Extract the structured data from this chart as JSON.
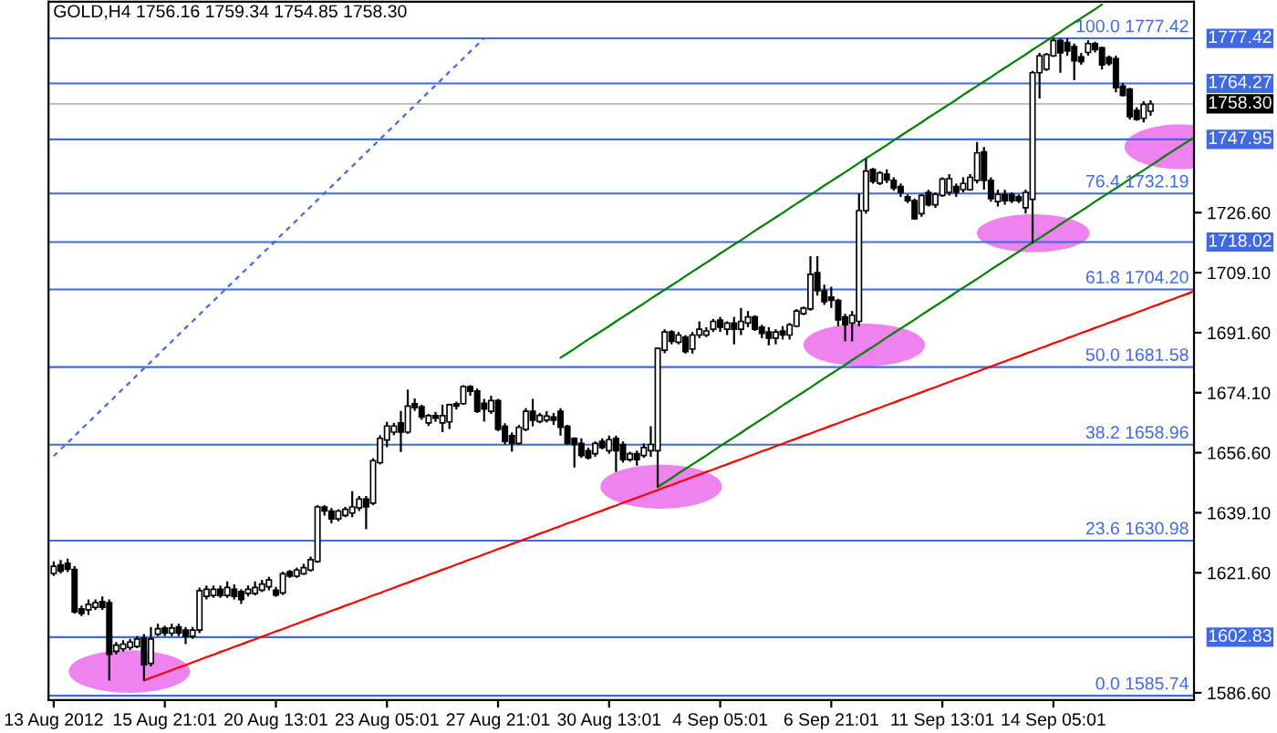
{
  "chart_data": {
    "type": "candlestick",
    "title": "GOLD,H4 1756.16 1759.34 1754.85 1758.30",
    "categories": [
      "13 Aug 2012",
      null,
      null,
      null,
      null,
      null,
      null,
      null,
      null,
      null,
      null,
      null,
      null,
      null,
      null,
      null,
      "15 Aug 21:01",
      null,
      null,
      null,
      null,
      null,
      null,
      null,
      null,
      null,
      null,
      null,
      null,
      null,
      null,
      null,
      "20 Aug 13:01",
      null,
      null,
      null,
      null,
      null,
      null,
      null,
      null,
      null,
      null,
      null,
      null,
      null,
      null,
      null,
      "23 Aug 05:01",
      null,
      null,
      null,
      null,
      null,
      null,
      null,
      null,
      null,
      null,
      null,
      null,
      null,
      null,
      null,
      "27 Aug 21:01",
      null,
      null,
      null,
      null,
      null,
      null,
      null,
      null,
      null,
      null,
      null,
      null,
      null,
      null,
      null,
      "30 Aug 13:01",
      null,
      null,
      null,
      null,
      null,
      null,
      null,
      null,
      null,
      null,
      null,
      null,
      null,
      null,
      null,
      "4 Sep 05:01",
      null,
      null,
      null,
      null,
      null,
      null,
      null,
      null,
      null,
      null,
      null,
      null,
      null,
      null,
      null,
      "6 Sep 21:01",
      null,
      null,
      null,
      null,
      null,
      null,
      null,
      null,
      null,
      null,
      null,
      null,
      null,
      null,
      null,
      "11 Sep 13:01",
      null,
      null,
      null,
      null,
      null,
      null,
      null,
      null,
      null,
      null,
      null,
      null,
      null,
      null,
      null,
      "14 Sep 05:01",
      null,
      null,
      null,
      null,
      null,
      null,
      null,
      null,
      null,
      null,
      null,
      null,
      null,
      null,
      null,
      null,
      null,
      null,
      null,
      null
    ],
    "ohlc": [
      [
        1621.4,
        1624.9,
        1620.7,
        1623.5
      ],
      [
        1623.9,
        1625.3,
        1621.4,
        1622.1
      ],
      [
        1624.4,
        1625.7,
        1621.8,
        1622.6
      ],
      [
        1622.6,
        1623.5,
        1609.7,
        1610.2
      ],
      [
        1611.1,
        1612.0,
        1609.0,
        1609.7
      ],
      [
        1610.8,
        1613.8,
        1609.3,
        1612.4
      ],
      [
        1611.5,
        1613.8,
        1610.8,
        1612.9
      ],
      [
        1613.2,
        1614.7,
        1610.8,
        1611.5
      ],
      [
        1612.9,
        1613.8,
        1590.2,
        1597.8
      ],
      [
        1598.7,
        1601.4,
        1597.8,
        1600.5
      ],
      [
        1599.4,
        1601.9,
        1598.7,
        1600.8
      ],
      [
        1599.8,
        1602.3,
        1599.1,
        1601.4
      ],
      [
        1600.1,
        1603.1,
        1599.6,
        1602.3
      ],
      [
        1602.6,
        1603.7,
        1590.2,
        1594.8
      ],
      [
        1595.2,
        1605.8,
        1594.3,
        1602.3
      ],
      [
        1603.7,
        1606.7,
        1603.1,
        1605.3
      ],
      [
        1605.5,
        1606.2,
        1603.1,
        1604.0
      ],
      [
        1604.0,
        1606.7,
        1603.1,
        1605.5
      ],
      [
        1605.8,
        1606.7,
        1603.1,
        1604.0
      ],
      [
        1604.9,
        1605.8,
        1600.8,
        1603.1
      ],
      [
        1603.1,
        1605.8,
        1602.3,
        1604.9
      ],
      [
        1604.9,
        1617.3,
        1604.0,
        1616.4
      ],
      [
        1614.7,
        1617.9,
        1613.8,
        1616.8
      ],
      [
        1615.0,
        1617.9,
        1614.3,
        1616.8
      ],
      [
        1616.8,
        1617.9,
        1614.3,
        1615.0
      ],
      [
        1615.0,
        1619.1,
        1614.3,
        1617.3
      ],
      [
        1616.8,
        1618.2,
        1613.8,
        1614.7
      ],
      [
        1616.1,
        1616.8,
        1612.5,
        1613.8
      ],
      [
        1615.6,
        1617.9,
        1614.7,
        1616.8
      ],
      [
        1615.6,
        1619.1,
        1615.0,
        1617.3
      ],
      [
        1616.5,
        1619.5,
        1616.0,
        1618.3
      ],
      [
        1617.5,
        1620.4,
        1616.5,
        1619.5
      ],
      [
        1616.5,
        1617.5,
        1614.6,
        1615.1
      ],
      [
        1615.7,
        1621.9,
        1615.1,
        1621.3
      ],
      [
        1621.9,
        1622.4,
        1620.1,
        1620.6
      ],
      [
        1620.6,
        1623.1,
        1620.1,
        1622.4
      ],
      [
        1621.3,
        1624.2,
        1621.0,
        1623.1
      ],
      [
        1622.4,
        1626.3,
        1621.9,
        1625.4
      ],
      [
        1624.9,
        1641.3,
        1624.5,
        1640.8
      ],
      [
        1640.8,
        1641.3,
        1638.3,
        1639.6
      ],
      [
        1639.6,
        1640.5,
        1636.0,
        1637.3
      ],
      [
        1637.3,
        1640.1,
        1636.6,
        1639.6
      ],
      [
        1638.3,
        1640.8,
        1637.8,
        1640.1
      ],
      [
        1639.0,
        1645.4,
        1637.8,
        1640.8
      ],
      [
        1640.5,
        1644.0,
        1639.6,
        1643.1
      ],
      [
        1643.1,
        1644.0,
        1634.3,
        1640.8
      ],
      [
        1641.9,
        1655.0,
        1641.3,
        1654.3
      ],
      [
        1653.7,
        1661.7,
        1653.2,
        1660.8
      ],
      [
        1660.3,
        1665.6,
        1658.2,
        1664.4
      ],
      [
        1662.6,
        1665.3,
        1661.7,
        1664.4
      ],
      [
        1665.3,
        1668.8,
        1656.8,
        1662.6
      ],
      [
        1662.6,
        1675.0,
        1662.1,
        1670.2
      ],
      [
        1670.9,
        1672.4,
        1668.8,
        1669.7
      ],
      [
        1670.0,
        1670.6,
        1666.2,
        1667.0
      ],
      [
        1665.3,
        1667.9,
        1664.4,
        1667.4
      ],
      [
        1667.4,
        1668.5,
        1665.6,
        1666.7
      ],
      [
        1665.3,
        1670.6,
        1662.6,
        1667.4
      ],
      [
        1665.6,
        1670.9,
        1663.5,
        1670.6
      ],
      [
        1670.9,
        1671.5,
        1669.2,
        1670.2
      ],
      [
        1670.9,
        1676.3,
        1670.6,
        1675.9
      ],
      [
        1675.9,
        1676.3,
        1673.2,
        1674.5
      ],
      [
        1674.6,
        1675.3,
        1668.2,
        1668.7
      ],
      [
        1671.0,
        1672.3,
        1665.7,
        1669.3
      ],
      [
        1668.7,
        1673.2,
        1667.9,
        1671.8
      ],
      [
        1671.8,
        1672.3,
        1662.9,
        1663.4
      ],
      [
        1664.3,
        1665.2,
        1659.0,
        1659.9
      ],
      [
        1661.6,
        1662.5,
        1656.9,
        1659.3
      ],
      [
        1659.3,
        1664.7,
        1659.0,
        1664.0
      ],
      [
        1663.4,
        1669.6,
        1662.9,
        1668.7
      ],
      [
        1668.7,
        1672.3,
        1664.3,
        1666.1
      ],
      [
        1665.7,
        1668.2,
        1665.2,
        1667.5
      ],
      [
        1666.1,
        1668.7,
        1665.4,
        1667.3
      ],
      [
        1667.0,
        1668.2,
        1664.7,
        1666.1
      ],
      [
        1668.7,
        1669.6,
        1661.6,
        1664.0
      ],
      [
        1664.3,
        1664.7,
        1659.0,
        1659.3
      ],
      [
        1660.8,
        1661.1,
        1652.3,
        1659.0
      ],
      [
        1659.3,
        1660.8,
        1655.1,
        1655.8
      ],
      [
        1657.2,
        1658.1,
        1654.6,
        1655.1
      ],
      [
        1656.3,
        1659.9,
        1655.4,
        1659.3
      ],
      [
        1659.9,
        1660.8,
        1657.6,
        1658.1
      ],
      [
        1657.2,
        1661.6,
        1656.3,
        1660.4
      ],
      [
        1660.8,
        1661.6,
        1651.0,
        1657.2
      ],
      [
        1659.0,
        1659.9,
        1653.7,
        1654.6
      ],
      [
        1654.6,
        1656.9,
        1654.0,
        1656.3
      ],
      [
        1656.3,
        1657.2,
        1652.8,
        1654.6
      ],
      [
        1655.8,
        1659.3,
        1655.1,
        1658.1
      ],
      [
        1657.2,
        1664.3,
        1655.4,
        1659.0
      ],
      [
        1657.2,
        1687.3,
        1646.6,
        1687.0
      ],
      [
        1686.5,
        1692.6,
        1685.6,
        1691.8
      ],
      [
        1691.8,
        1692.3,
        1688.2,
        1689.1
      ],
      [
        1688.8,
        1691.8,
        1688.2,
        1690.9
      ],
      [
        1690.3,
        1690.9,
        1685.5,
        1686.1
      ],
      [
        1686.8,
        1691.8,
        1685.5,
        1690.9
      ],
      [
        1690.9,
        1694.9,
        1690.0,
        1692.6
      ],
      [
        1690.9,
        1693.2,
        1690.3,
        1692.1
      ],
      [
        1692.6,
        1695.6,
        1691.8,
        1694.9
      ],
      [
        1695.3,
        1696.2,
        1691.8,
        1693.2
      ],
      [
        1692.6,
        1694.9,
        1690.9,
        1694.4
      ],
      [
        1694.4,
        1696.2,
        1688.2,
        1692.6
      ],
      [
        1692.6,
        1698.8,
        1690.9,
        1694.9
      ],
      [
        1694.4,
        1697.9,
        1693.2,
        1696.2
      ],
      [
        1696.2,
        1696.7,
        1692.1,
        1692.6
      ],
      [
        1693.2,
        1693.9,
        1690.0,
        1691.4
      ],
      [
        1691.8,
        1693.2,
        1687.9,
        1690.0
      ],
      [
        1690.0,
        1692.6,
        1688.2,
        1691.8
      ],
      [
        1692.1,
        1693.5,
        1689.6,
        1690.9
      ],
      [
        1690.9,
        1694.4,
        1689.6,
        1693.9
      ],
      [
        1693.5,
        1698.5,
        1693.2,
        1697.9
      ],
      [
        1697.1,
        1699.2,
        1696.7,
        1698.8
      ],
      [
        1698.5,
        1713.9,
        1698.0,
        1708.6
      ],
      [
        1709.1,
        1713.9,
        1702.4,
        1703.8
      ],
      [
        1703.8,
        1705.6,
        1699.7,
        1700.6
      ],
      [
        1702.0,
        1705.0,
        1698.8,
        1701.0
      ],
      [
        1701.0,
        1701.5,
        1693.5,
        1695.3
      ],
      [
        1696.2,
        1697.1,
        1689.1,
        1693.9
      ],
      [
        1694.4,
        1697.9,
        1689.1,
        1696.7
      ],
      [
        1694.9,
        1732.2,
        1693.5,
        1727.2
      ],
      [
        1727.2,
        1742.3,
        1726.3,
        1738.7
      ],
      [
        1739.2,
        1739.6,
        1735.0,
        1735.7
      ],
      [
        1735.2,
        1738.7,
        1734.6,
        1738.2
      ],
      [
        1737.8,
        1739.2,
        1735.2,
        1736.1
      ],
      [
        1736.0,
        1736.9,
        1733.0,
        1733.7
      ],
      [
        1734.2,
        1735.1,
        1731.2,
        1732.5
      ],
      [
        1731.2,
        1731.9,
        1729.4,
        1730.1
      ],
      [
        1730.1,
        1730.7,
        1724.5,
        1724.8
      ],
      [
        1726.3,
        1731.9,
        1725.4,
        1731.6
      ],
      [
        1732.5,
        1733.3,
        1728.4,
        1728.9
      ],
      [
        1728.9,
        1732.5,
        1728.0,
        1731.9
      ],
      [
        1731.6,
        1736.9,
        1731.2,
        1736.4
      ],
      [
        1732.5,
        1737.8,
        1731.6,
        1736.5
      ],
      [
        1734.2,
        1735.1,
        1731.2,
        1732.5
      ],
      [
        1733.3,
        1736.9,
        1732.5,
        1735.1
      ],
      [
        1733.3,
        1737.8,
        1733.0,
        1736.9
      ],
      [
        1736.0,
        1747.2,
        1735.1,
        1744.0
      ],
      [
        1744.3,
        1745.7,
        1733.3,
        1736.0
      ],
      [
        1736.0,
        1736.9,
        1729.8,
        1730.7
      ],
      [
        1729.8,
        1733.3,
        1728.4,
        1731.9
      ],
      [
        1731.9,
        1733.3,
        1728.9,
        1730.1
      ],
      [
        1731.9,
        1732.5,
        1729.4,
        1730.1
      ],
      [
        1731.2,
        1731.9,
        1729.4,
        1730.1
      ],
      [
        1728.0,
        1733.3,
        1726.3,
        1732.5
      ],
      [
        1730.5,
        1767.9,
        1717.7,
        1767.4
      ],
      [
        1767.4,
        1773.2,
        1759.9,
        1772.3
      ],
      [
        1768.4,
        1773.2,
        1767.9,
        1772.7
      ],
      [
        1772.3,
        1777.4,
        1772.0,
        1776.8
      ],
      [
        1776.8,
        1777.3,
        1767.4,
        1773.2
      ],
      [
        1776.2,
        1777.4,
        1772.3,
        1773.7
      ],
      [
        1775.0,
        1775.9,
        1765.2,
        1770.9
      ],
      [
        1772.0,
        1773.2,
        1769.7,
        1770.6
      ],
      [
        1773.3,
        1776.8,
        1772.4,
        1775.9
      ],
      [
        1775.9,
        1776.4,
        1773.3,
        1774.1
      ],
      [
        1774.7,
        1775.0,
        1768.3,
        1769.7
      ],
      [
        1771.8,
        1772.4,
        1769.4,
        1770.1
      ],
      [
        1771.5,
        1772.4,
        1761.7,
        1763.0
      ],
      [
        1763.5,
        1764.4,
        1760.5,
        1760.8
      ],
      [
        1762.6,
        1763.0,
        1753.8,
        1754.6
      ],
      [
        1756.4,
        1757.3,
        1753.4,
        1753.8
      ],
      [
        1754.1,
        1759.1,
        1752.9,
        1758.2
      ],
      [
        1756.16,
        1759.34,
        1754.85,
        1758.3
      ],
      null,
      null,
      null,
      null,
      null,
      null
    ],
    "series": [
      {
        "type": "line",
        "color": "#ff0000",
        "values": [
          null,
          null,
          null,
          null,
          null,
          null,
          null,
          null,
          null,
          null,
          null,
          null,
          null,
          1590.2,
          1591.0,
          1591.7,
          1592.5,
          1593.2,
          1594.0,
          1594.7,
          1595.5,
          1596.2,
          1597.0,
          1597.7,
          1598.5,
          1599.2,
          1600.0,
          1600.7,
          1601.5,
          1602.2,
          1603.0,
          1603.7,
          1604.5,
          1605.2,
          1606.0,
          1606.7,
          1607.5,
          1608.2,
          1609.0,
          1609.7,
          1610.5,
          1611.2,
          1612.0,
          1612.7,
          1613.5,
          1614.2,
          1615.0,
          1615.7,
          1616.5,
          1617.2,
          1618.0,
          1618.7,
          1619.5,
          1620.2,
          1621.0,
          1621.7,
          1622.5,
          1623.2,
          1624.0,
          1624.7,
          1625.5,
          1626.2,
          1627.0,
          1627.7,
          1628.5,
          1629.2,
          1630.0,
          1630.7,
          1631.5,
          1632.2,
          1633.0,
          1633.7,
          1634.5,
          1635.2,
          1636.0,
          1636.7,
          1637.5,
          1638.2,
          1639.0,
          1639.7,
          1640.5,
          1641.2,
          1642.0,
          1642.7,
          1643.5,
          1644.2,
          1645.0,
          1645.7,
          1646.5,
          1647.2,
          1648.0,
          1648.7,
          1649.5,
          1650.2,
          1651.0,
          1651.7,
          1652.5,
          1653.2,
          1654.0,
          1654.7,
          1655.5,
          1656.2,
          1657.0,
          1657.7,
          1658.5,
          1659.2,
          1660.0,
          1660.7,
          1661.5,
          1662.2,
          1663.0,
          1663.7,
          1664.5,
          1665.2,
          1666.0,
          1666.7,
          1667.5,
          1668.2,
          1669.0,
          1669.7,
          1670.5,
          1671.2,
          1672.0,
          1672.7,
          1673.5,
          1674.2,
          1675.0,
          1675.7,
          1676.5,
          1677.2,
          1678.0,
          1678.7,
          1679.5,
          1680.2,
          1681.0,
          1681.7,
          1682.5,
          1683.2,
          1684.0,
          1684.7,
          1685.5,
          1686.2,
          1687.0,
          1687.7,
          1688.5,
          1689.2,
          1690.0,
          1690.7,
          1691.5,
          1692.2,
          1693.0,
          1693.7,
          1694.5,
          1695.2,
          1696.0,
          1696.7,
          1697.5,
          1698.2,
          1699.0,
          1699.7,
          1700.5,
          1701.2,
          1702.0,
          1702.7,
          1703.5
        ]
      },
      {
        "type": "line",
        "color": "#008000",
        "values": [
          null,
          null,
          null,
          null,
          null,
          null,
          null,
          null,
          null,
          null,
          null,
          null,
          null,
          null,
          null,
          null,
          null,
          null,
          null,
          null,
          null,
          null,
          null,
          null,
          null,
          null,
          null,
          null,
          null,
          null,
          null,
          null,
          null,
          null,
          null,
          null,
          null,
          null,
          null,
          null,
          null,
          null,
          null,
          null,
          null,
          null,
          null,
          null,
          null,
          null,
          null,
          null,
          null,
          null,
          null,
          null,
          null,
          null,
          null,
          null,
          null,
          null,
          null,
          null,
          null,
          null,
          null,
          null,
          null,
          null,
          null,
          null,
          null,
          null,
          null,
          null,
          null,
          null,
          null,
          null,
          null,
          null,
          null,
          null,
          null,
          null,
          null,
          1646.6,
          1647.9,
          1649.2,
          1650.6,
          1651.9,
          1653.2,
          1654.5,
          1655.8,
          1657.2,
          1658.5,
          1659.8,
          1661.1,
          1662.4,
          1663.8,
          1665.1,
          1666.4,
          1667.7,
          1669.0,
          1670.4,
          1671.7,
          1673.0,
          1674.3,
          1675.6,
          1677.0,
          1678.3,
          1679.6,
          1680.9,
          1682.2,
          1683.6,
          1684.9,
          1686.2,
          1687.5,
          1688.8,
          1690.2,
          1691.5,
          1692.8,
          1694.1,
          1695.4,
          1696.8,
          1698.1,
          1699.4,
          1700.7,
          1702.0,
          1703.4,
          1704.7,
          1706.0,
          1707.3,
          1708.6,
          1710.0,
          1711.3,
          1712.6,
          1713.9,
          1715.2,
          1716.6,
          1717.9,
          1719.2,
          1720.5,
          1721.8,
          1723.2,
          1724.5,
          1725.8,
          1727.1,
          1728.4,
          1729.8,
          1731.1,
          1732.4,
          1733.7,
          1735.0,
          1736.4,
          1737.7,
          1739.0,
          1740.3,
          1741.6,
          1743.0,
          1744.3,
          1745.6,
          1746.9,
          1748.2
        ]
      },
      {
        "type": "line",
        "color": "#008000",
        "values": [
          null,
          null,
          null,
          null,
          null,
          null,
          null,
          null,
          null,
          null,
          null,
          null,
          null,
          null,
          null,
          null,
          null,
          null,
          null,
          null,
          null,
          null,
          null,
          null,
          null,
          null,
          null,
          null,
          null,
          null,
          null,
          null,
          null,
          null,
          null,
          null,
          null,
          null,
          null,
          null,
          null,
          null,
          null,
          null,
          null,
          null,
          null,
          null,
          null,
          null,
          null,
          null,
          null,
          null,
          null,
          null,
          null,
          null,
          null,
          null,
          null,
          null,
          null,
          null,
          null,
          null,
          null,
          null,
          null,
          null,
          null,
          null,
          null,
          1684.3,
          1685.6,
          1686.9,
          1688.3,
          1689.6,
          1690.9,
          1692.2,
          1693.5,
          1694.9,
          1696.2,
          1697.5,
          1698.8,
          1700.1,
          1701.5,
          1702.8,
          1704.1,
          1705.4,
          1706.7,
          1708.1,
          1709.4,
          1710.7,
          1712.0,
          1713.3,
          1714.7,
          1716.0,
          1717.3,
          1718.6,
          1719.9,
          1721.3,
          1722.6,
          1723.9,
          1725.2,
          1726.5,
          1727.9,
          1729.2,
          1730.5,
          1731.8,
          1733.1,
          1734.5,
          1735.8,
          1737.1,
          1738.4,
          1739.7,
          1741.1,
          1742.4,
          1743.7,
          1745.0,
          1746.3,
          1747.7,
          1749.0,
          1750.3,
          1751.6,
          1752.9,
          1754.3,
          1755.6,
          1756.9,
          1758.2,
          1759.5,
          1760.9,
          1762.2,
          1763.5,
          1764.8,
          1766.1,
          1767.5,
          1768.8,
          1770.1,
          1771.4,
          1772.7,
          1774.1,
          1775.4,
          1776.7,
          1778.0,
          1779.3,
          1780.7,
          1782.0,
          1783.3,
          1784.6,
          1785.9,
          1787.3,
          null,
          null,
          null,
          null,
          null,
          null,
          null,
          null,
          null,
          null,
          null,
          null,
          null
        ]
      },
      {
        "type": "line",
        "color": "#4169e1",
        "line_style": "dashed",
        "values": [
          1655.6,
          1657.6,
          1659.5,
          1661.5,
          1663.5,
          1665.4,
          1667.4,
          1669.4,
          1671.3,
          1673.3,
          1675.3,
          1677.2,
          1679.2,
          1681.2,
          1683.1,
          1685.1,
          1687.1,
          1689.0,
          1691.0,
          1693.0,
          1694.9,
          1696.9,
          1698.9,
          1700.8,
          1702.8,
          1704.8,
          1706.7,
          1708.7,
          1710.6,
          1712.6,
          1714.6,
          1716.5,
          1718.5,
          1720.5,
          1722.4,
          1724.4,
          1726.4,
          1728.3,
          1730.3,
          1732.3,
          1734.2,
          1736.2,
          1738.2,
          1740.1,
          1742.1,
          1744.1,
          1746.0,
          1748.0,
          1750.0,
          1751.9,
          1753.9,
          1755.9,
          1757.8,
          1759.8,
          1761.8,
          1763.7,
          1765.7,
          1767.7,
          1769.6,
          1771.6,
          1773.6,
          1775.5,
          1777.5,
          null,
          null,
          null,
          null,
          null,
          null,
          null,
          null,
          null,
          null,
          null,
          null,
          null,
          null,
          null,
          null,
          null,
          null,
          null,
          null,
          null,
          null,
          null,
          null,
          null,
          null,
          null,
          null,
          null,
          null,
          null,
          null,
          null,
          null,
          null,
          null,
          null,
          null,
          null,
          null,
          null,
          null,
          null,
          null,
          null,
          null,
          null,
          null,
          null,
          null,
          null,
          null,
          null,
          null,
          null,
          null,
          null,
          null,
          null,
          null,
          null,
          null,
          null,
          null,
          null,
          null,
          null,
          null,
          null,
          null,
          null,
          null,
          null,
          null,
          null,
          null,
          null,
          null,
          null,
          null,
          null,
          null,
          null,
          null,
          null,
          null,
          null,
          null,
          null,
          null,
          null,
          null,
          null,
          null,
          null,
          null,
          null,
          null,
          null,
          null,
          null,
          null
        ]
      }
    ],
    "ylim": [
      1584.5,
      1788.1
    ],
    "yticks": [
      {
        "value": 1586.6,
        "label": "1586.60"
      },
      {
        "value": 1621.6,
        "label": "1621.60"
      },
      {
        "value": 1639.1,
        "label": "1639.10"
      },
      {
        "value": 1656.6,
        "label": "1656.60"
      },
      {
        "value": 1674.1,
        "label": "1674.10"
      },
      {
        "value": 1691.6,
        "label": "1691.60"
      },
      {
        "value": 1709.1,
        "label": "1709.10"
      },
      {
        "value": 1726.6,
        "label": "1726.60"
      }
    ],
    "ref_lines": [
      {
        "axis": "y",
        "value": 1777.42,
        "label": "1777.42",
        "color": "#4169e1"
      },
      {
        "axis": "y",
        "value": 1764.27,
        "label": "1764.27",
        "color": "#4169e1"
      },
      {
        "axis": "y",
        "value": 1758.3,
        "label": "1758.30",
        "color": "#c0c0c0"
      },
      {
        "axis": "y",
        "value": 1747.95,
        "label": "1747.95",
        "color": "#4169e1"
      },
      {
        "axis": "y",
        "value": 1732.19,
        "color": "#4169e1"
      },
      {
        "axis": "y",
        "value": 1718.02,
        "label": "1718.02",
        "color": "#4169e1"
      },
      {
        "axis": "y",
        "value": 1704.2,
        "color": "#4169e1"
      },
      {
        "axis": "y",
        "value": 1681.58,
        "color": "#4169e1"
      },
      {
        "axis": "y",
        "value": 1658.96,
        "color": "#4169e1"
      },
      {
        "axis": "y",
        "value": 1630.98,
        "color": "#4169e1"
      },
      {
        "axis": "y",
        "value": 1602.83,
        "label": "1602.83",
        "color": "#4169e1"
      },
      {
        "axis": "y",
        "value": 1585.74,
        "color": "#4169e1"
      }
    ],
    "annotations": [
      {
        "text": "100.0 1777.42",
        "y": 1777.42
      },
      {
        "text": "76.4 1732.19",
        "y": 1732.19
      },
      {
        "text": "61.8 1704.20",
        "y": 1704.2
      },
      {
        "text": "50.0 1681.58",
        "y": 1681.58
      },
      {
        "text": "38.2 1658.96",
        "y": 1658.96
      },
      {
        "text": "23.6 1630.98",
        "y": 1630.98
      },
      {
        "text": "0.0 1585.74",
        "y": 1585.74
      }
    ]
  }
}
